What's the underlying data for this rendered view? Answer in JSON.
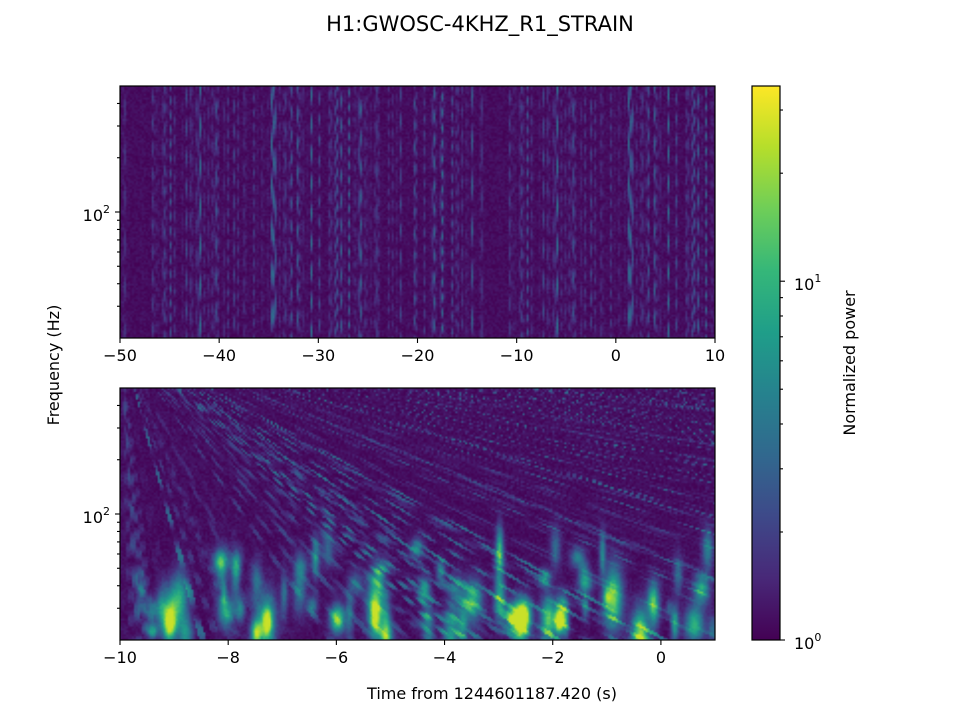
{
  "title": "H1:GWOSC-4KHZ_R1_STRAIN",
  "colors": {
    "viridis": [
      "#440154",
      "#482878",
      "#3e4989",
      "#31688e",
      "#26828e",
      "#1f9e89",
      "#35b779",
      "#6ece58",
      "#b5de2b",
      "#fde725"
    ]
  },
  "chart_data": [
    {
      "type": "heatmap",
      "panel": "top",
      "xlim": [
        -50,
        10
      ],
      "x_ticks": [
        -50,
        -40,
        -30,
        -20,
        -10,
        0,
        10
      ],
      "x_tick_labels": [
        "−50",
        "−40",
        "−30",
        "−20",
        "−10",
        "0",
        "10"
      ],
      "y_scale": "log",
      "ylim": [
        20,
        500
      ],
      "y_ticks": [
        100
      ],
      "y_tick_labels": [
        "10",
        "2"
      ],
      "y_label": "Frequency (Hz)",
      "z": "Normalized power",
      "z_range": [
        1,
        35
      ],
      "pattern": "noise: narrow vertical streaks across all frequencies, low power (mostly below 3) everywhere"
    },
    {
      "type": "heatmap",
      "panel": "bottom",
      "xlim": [
        -10,
        1
      ],
      "x_ticks": [
        -10,
        -8,
        -6,
        -4,
        -2,
        0
      ],
      "x_tick_labels": [
        "−10",
        "−8",
        "−6",
        "−4",
        "−2",
        "0"
      ],
      "x_label": "Time from 1244601187.420 (s)",
      "y_scale": "log",
      "ylim": [
        20,
        500
      ],
      "y_ticks": [
        100
      ],
      "y_tick_labels": [
        "10",
        "2"
      ],
      "z": "Normalized power",
      "z_range": [
        1,
        35
      ],
      "pattern": "noise: thin streaks at high frequency, broader blobs below ~60 Hz reaching power ~10-20 near t = -9, -7.5, -5.3, -3"
    }
  ],
  "colorbar": {
    "label": "Normalized power",
    "scale": "log",
    "range": [
      1,
      35
    ],
    "tick_labels": [
      {
        "value": 1,
        "base": "10",
        "exp": "0"
      },
      {
        "value": 10,
        "base": "10",
        "exp": "1"
      }
    ]
  }
}
